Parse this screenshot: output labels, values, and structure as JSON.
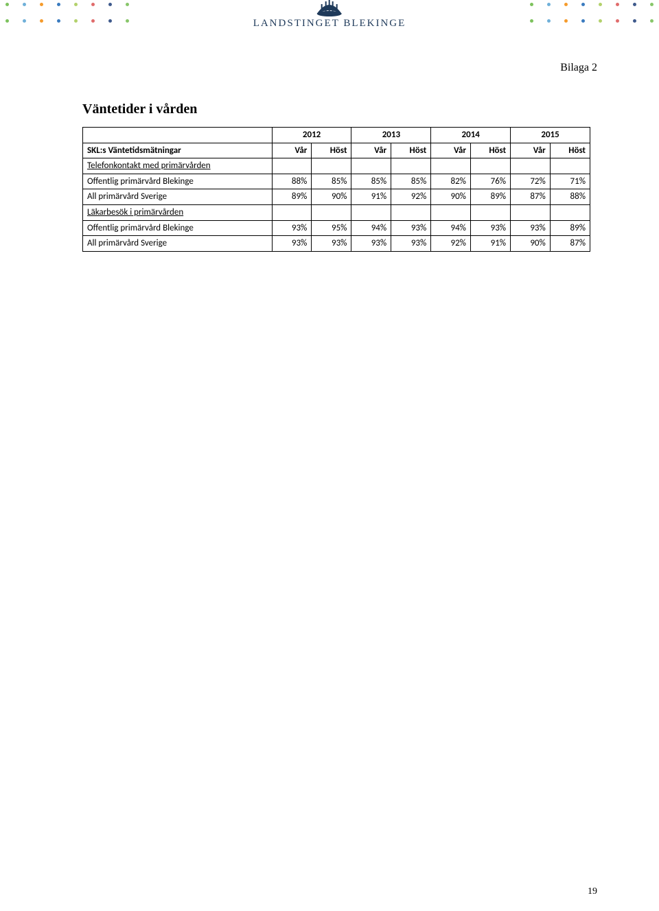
{
  "header": {
    "logo_text": "LANDSTINGET BLEKINGE",
    "logo_color": "#1f3a5a",
    "dot_colors": [
      "#7dc25d",
      "#6fb0d9",
      "#f59b2c",
      "#3a7bbf",
      "#b3d16c",
      "#e06c6c",
      "#3f5a8c",
      "#88c66a"
    ]
  },
  "bilaga": "Bilaga 2",
  "title": "Väntetider i vården",
  "years": [
    "2012",
    "2013",
    "2014",
    "2015"
  ],
  "subheaders": [
    "Vår",
    "Höst",
    "Vår",
    "Höst",
    "Vår",
    "Höst",
    "Vår",
    "Höst"
  ],
  "row_label_header": "SKL:s Väntetidsmätningar",
  "rows": [
    {
      "label": "Telefonkontakt med primärvården",
      "underline": true,
      "values": [
        "",
        "",
        "",
        "",
        "",
        "",
        "",
        ""
      ]
    },
    {
      "label": "Offentlig primärvård Blekinge",
      "underline": false,
      "values": [
        "88%",
        "85%",
        "85%",
        "85%",
        "82%",
        "76%",
        "72%",
        "71%"
      ]
    },
    {
      "label": "All primärvård Sverige",
      "underline": false,
      "values": [
        "89%",
        "90%",
        "91%",
        "92%",
        "90%",
        "89%",
        "87%",
        "88%"
      ]
    },
    {
      "label": "Läkarbesök i primärvården",
      "underline": true,
      "values": [
        "",
        "",
        "",
        "",
        "",
        "",
        "",
        ""
      ]
    },
    {
      "label": "Offentlig primärvård Blekinge",
      "underline": false,
      "values": [
        "93%",
        "95%",
        "94%",
        "93%",
        "94%",
        "93%",
        "93%",
        "89%"
      ]
    },
    {
      "label": "All primärvård Sverige",
      "underline": false,
      "values": [
        "93%",
        "93%",
        "93%",
        "93%",
        "92%",
        "91%",
        "90%",
        "87%"
      ]
    }
  ],
  "page_number": "19"
}
